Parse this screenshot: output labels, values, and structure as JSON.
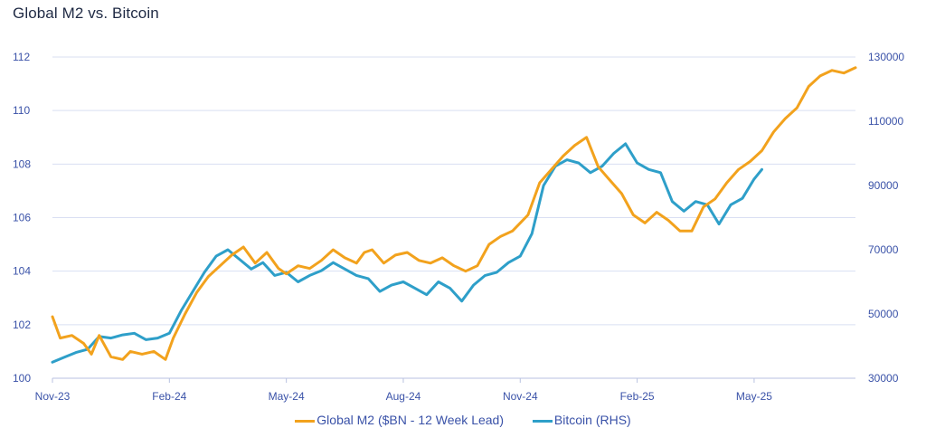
{
  "chart_data": {
    "type": "line",
    "title": "Global M2 vs. Bitcoin",
    "x_ticks": [
      "Nov-23",
      "Feb-24",
      "May-24",
      "Aug-24",
      "Nov-24",
      "Feb-25",
      "May-25"
    ],
    "x_tick_index": [
      0,
      3,
      6,
      9,
      12,
      15,
      18
    ],
    "x_range_months": [
      0,
      20.6
    ],
    "y_left": {
      "ticks": [
        100,
        102,
        104,
        106,
        108,
        110,
        112
      ],
      "range": [
        100,
        112
      ]
    },
    "y_right": {
      "ticks": [
        30000,
        50000,
        70000,
        90000,
        110000,
        130000
      ],
      "range": [
        30000,
        130000
      ]
    },
    "grid": "horizontal",
    "legend_position": "bottom-center",
    "series": [
      {
        "name": "Global M2 ($BN - 12 Week Lead)",
        "axis": "left",
        "color": "#f2a21d",
        "x": [
          0,
          0.2,
          0.5,
          0.8,
          1.0,
          1.2,
          1.5,
          1.8,
          2.0,
          2.3,
          2.6,
          2.9,
          3.1,
          3.4,
          3.7,
          4.0,
          4.3,
          4.6,
          4.9,
          5.2,
          5.5,
          5.8,
          6.0,
          6.3,
          6.6,
          6.9,
          7.2,
          7.5,
          7.8,
          8.0,
          8.2,
          8.5,
          8.8,
          9.1,
          9.4,
          9.7,
          10.0,
          10.3,
          10.6,
          10.9,
          11.2,
          11.5,
          11.8,
          12.0,
          12.2,
          12.5,
          12.8,
          13.1,
          13.4,
          13.7,
          14.0,
          14.3,
          14.6,
          14.9,
          15.2,
          15.5,
          15.8,
          16.1,
          16.4,
          16.7,
          17.0,
          17.3,
          17.6,
          17.9,
          18.2,
          18.5,
          18.8,
          19.1,
          19.4,
          19.7,
          20.0,
          20.3,
          20.6
        ],
        "y": [
          102.3,
          101.5,
          101.6,
          101.3,
          100.9,
          101.6,
          100.8,
          100.7,
          101.0,
          100.9,
          101.0,
          100.7,
          101.5,
          102.4,
          103.2,
          103.8,
          104.2,
          104.6,
          104.9,
          104.3,
          104.7,
          104.1,
          103.9,
          104.2,
          104.1,
          104.4,
          104.8,
          104.5,
          104.3,
          104.7,
          104.8,
          104.3,
          104.6,
          104.7,
          104.4,
          104.3,
          104.5,
          104.2,
          104.0,
          104.2,
          105.0,
          105.3,
          105.5,
          105.8,
          106.1,
          107.3,
          107.8,
          108.3,
          108.7,
          109.0,
          107.9,
          107.4,
          106.9,
          106.1,
          105.8,
          106.2,
          105.9,
          105.5,
          105.5,
          106.4,
          106.7,
          107.3,
          107.8,
          108.1,
          108.5,
          109.2,
          109.7,
          110.1,
          110.9,
          111.3,
          111.5,
          111.4,
          111.6
        ]
      },
      {
        "name": "Bitcoin (RHS)",
        "axis": "right",
        "color": "#2e9fc9",
        "x": [
          0,
          0.3,
          0.6,
          0.9,
          1.2,
          1.5,
          1.8,
          2.1,
          2.4,
          2.7,
          3.0,
          3.3,
          3.6,
          3.9,
          4.2,
          4.5,
          4.8,
          5.1,
          5.4,
          5.7,
          6.0,
          6.3,
          6.6,
          6.9,
          7.2,
          7.5,
          7.8,
          8.1,
          8.4,
          8.7,
          9.0,
          9.3,
          9.6,
          9.9,
          10.2,
          10.5,
          10.8,
          11.1,
          11.4,
          11.7,
          12.0,
          12.3,
          12.6,
          12.9,
          13.2,
          13.5,
          13.8,
          14.1,
          14.4,
          14.7,
          15.0,
          15.3,
          15.6,
          15.9,
          16.2,
          16.5,
          16.8,
          17.1,
          17.4,
          17.7,
          18.0,
          18.2
        ],
        "y": [
          35000,
          36500,
          38000,
          39000,
          43000,
          42500,
          43500,
          44000,
          42000,
          42500,
          44000,
          51000,
          57000,
          63000,
          68000,
          70000,
          67000,
          64000,
          66000,
          62000,
          63000,
          60000,
          62000,
          63500,
          66000,
          64000,
          62000,
          61000,
          57000,
          59000,
          60000,
          58000,
          56000,
          60000,
          58000,
          54000,
          59000,
          62000,
          63000,
          66000,
          68000,
          75000,
          90000,
          96000,
          98000,
          97000,
          94000,
          96000,
          100000,
          103000,
          97000,
          95000,
          94000,
          85000,
          82000,
          85000,
          84000,
          78000,
          84000,
          86000,
          92000,
          95000
        ]
      }
    ]
  }
}
